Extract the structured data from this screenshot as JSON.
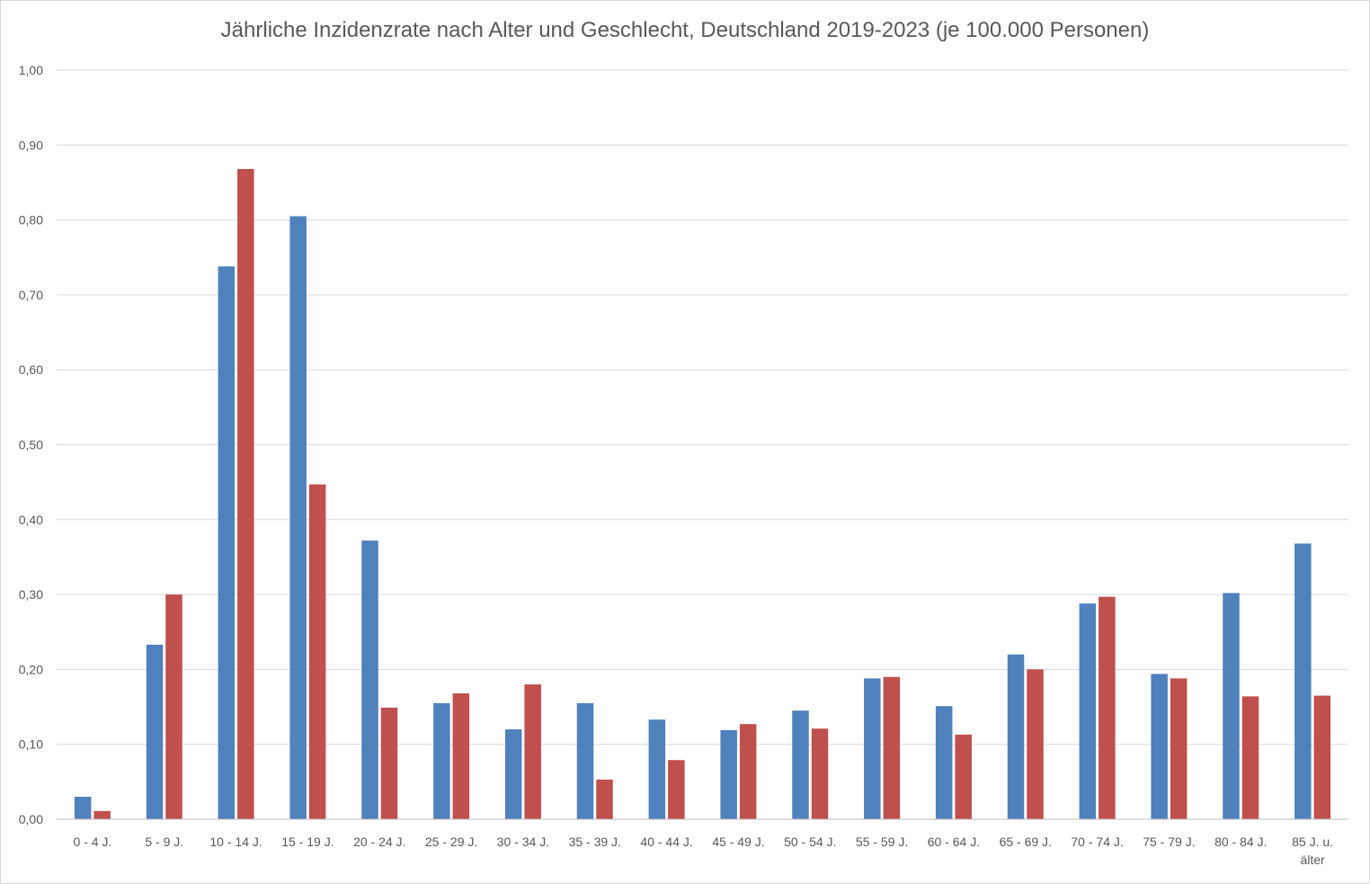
{
  "chart_data": {
    "type": "bar",
    "title": "Jährliche Inzidenzrate nach Alter und Geschlecht, Deutschland 2019-2023 (je 100.000 Personen)",
    "xlabel": "",
    "ylabel": "",
    "ylim": [
      0,
      1.0
    ],
    "yticks": [
      0.0,
      0.1,
      0.2,
      0.3,
      0.4,
      0.5,
      0.6,
      0.7,
      0.8,
      0.9,
      1.0
    ],
    "ytick_labels": [
      "0,00",
      "0,10",
      "0,20",
      "0,30",
      "0,40",
      "0,50",
      "0,60",
      "0,70",
      "0,80",
      "0,90",
      "1,00"
    ],
    "grid": true,
    "legend": "none",
    "categories": [
      [
        "0 - 4 J."
      ],
      [
        "5 - 9 J."
      ],
      [
        "10 - 14 J."
      ],
      [
        "15 - 19 J."
      ],
      [
        "20 - 24 J."
      ],
      [
        "25 - 29 J."
      ],
      [
        "30 - 34 J."
      ],
      [
        "35 - 39 J."
      ],
      [
        "40 - 44 J."
      ],
      [
        "45 - 49 J."
      ],
      [
        "50 - 54 J."
      ],
      [
        "55 - 59 J."
      ],
      [
        "60 - 64 J."
      ],
      [
        "65 - 69 J."
      ],
      [
        "70 - 74 J."
      ],
      [
        "75 - 79 J."
      ],
      [
        "80 - 84 J."
      ],
      [
        "85 J. u.",
        "älter"
      ]
    ],
    "series": [
      {
        "color": "#4f81bd",
        "values": [
          0.03,
          0.233,
          0.738,
          0.805,
          0.372,
          0.155,
          0.12,
          0.155,
          0.133,
          0.119,
          0.145,
          0.188,
          0.151,
          0.22,
          0.288,
          0.194,
          0.302,
          0.368
        ]
      },
      {
        "color": "#c0504d",
        "values": [
          0.011,
          0.3,
          0.868,
          0.447,
          0.149,
          0.168,
          0.18,
          0.053,
          0.079,
          0.127,
          0.121,
          0.19,
          0.113,
          0.2,
          0.297,
          0.188,
          0.164,
          0.165
        ]
      }
    ]
  }
}
